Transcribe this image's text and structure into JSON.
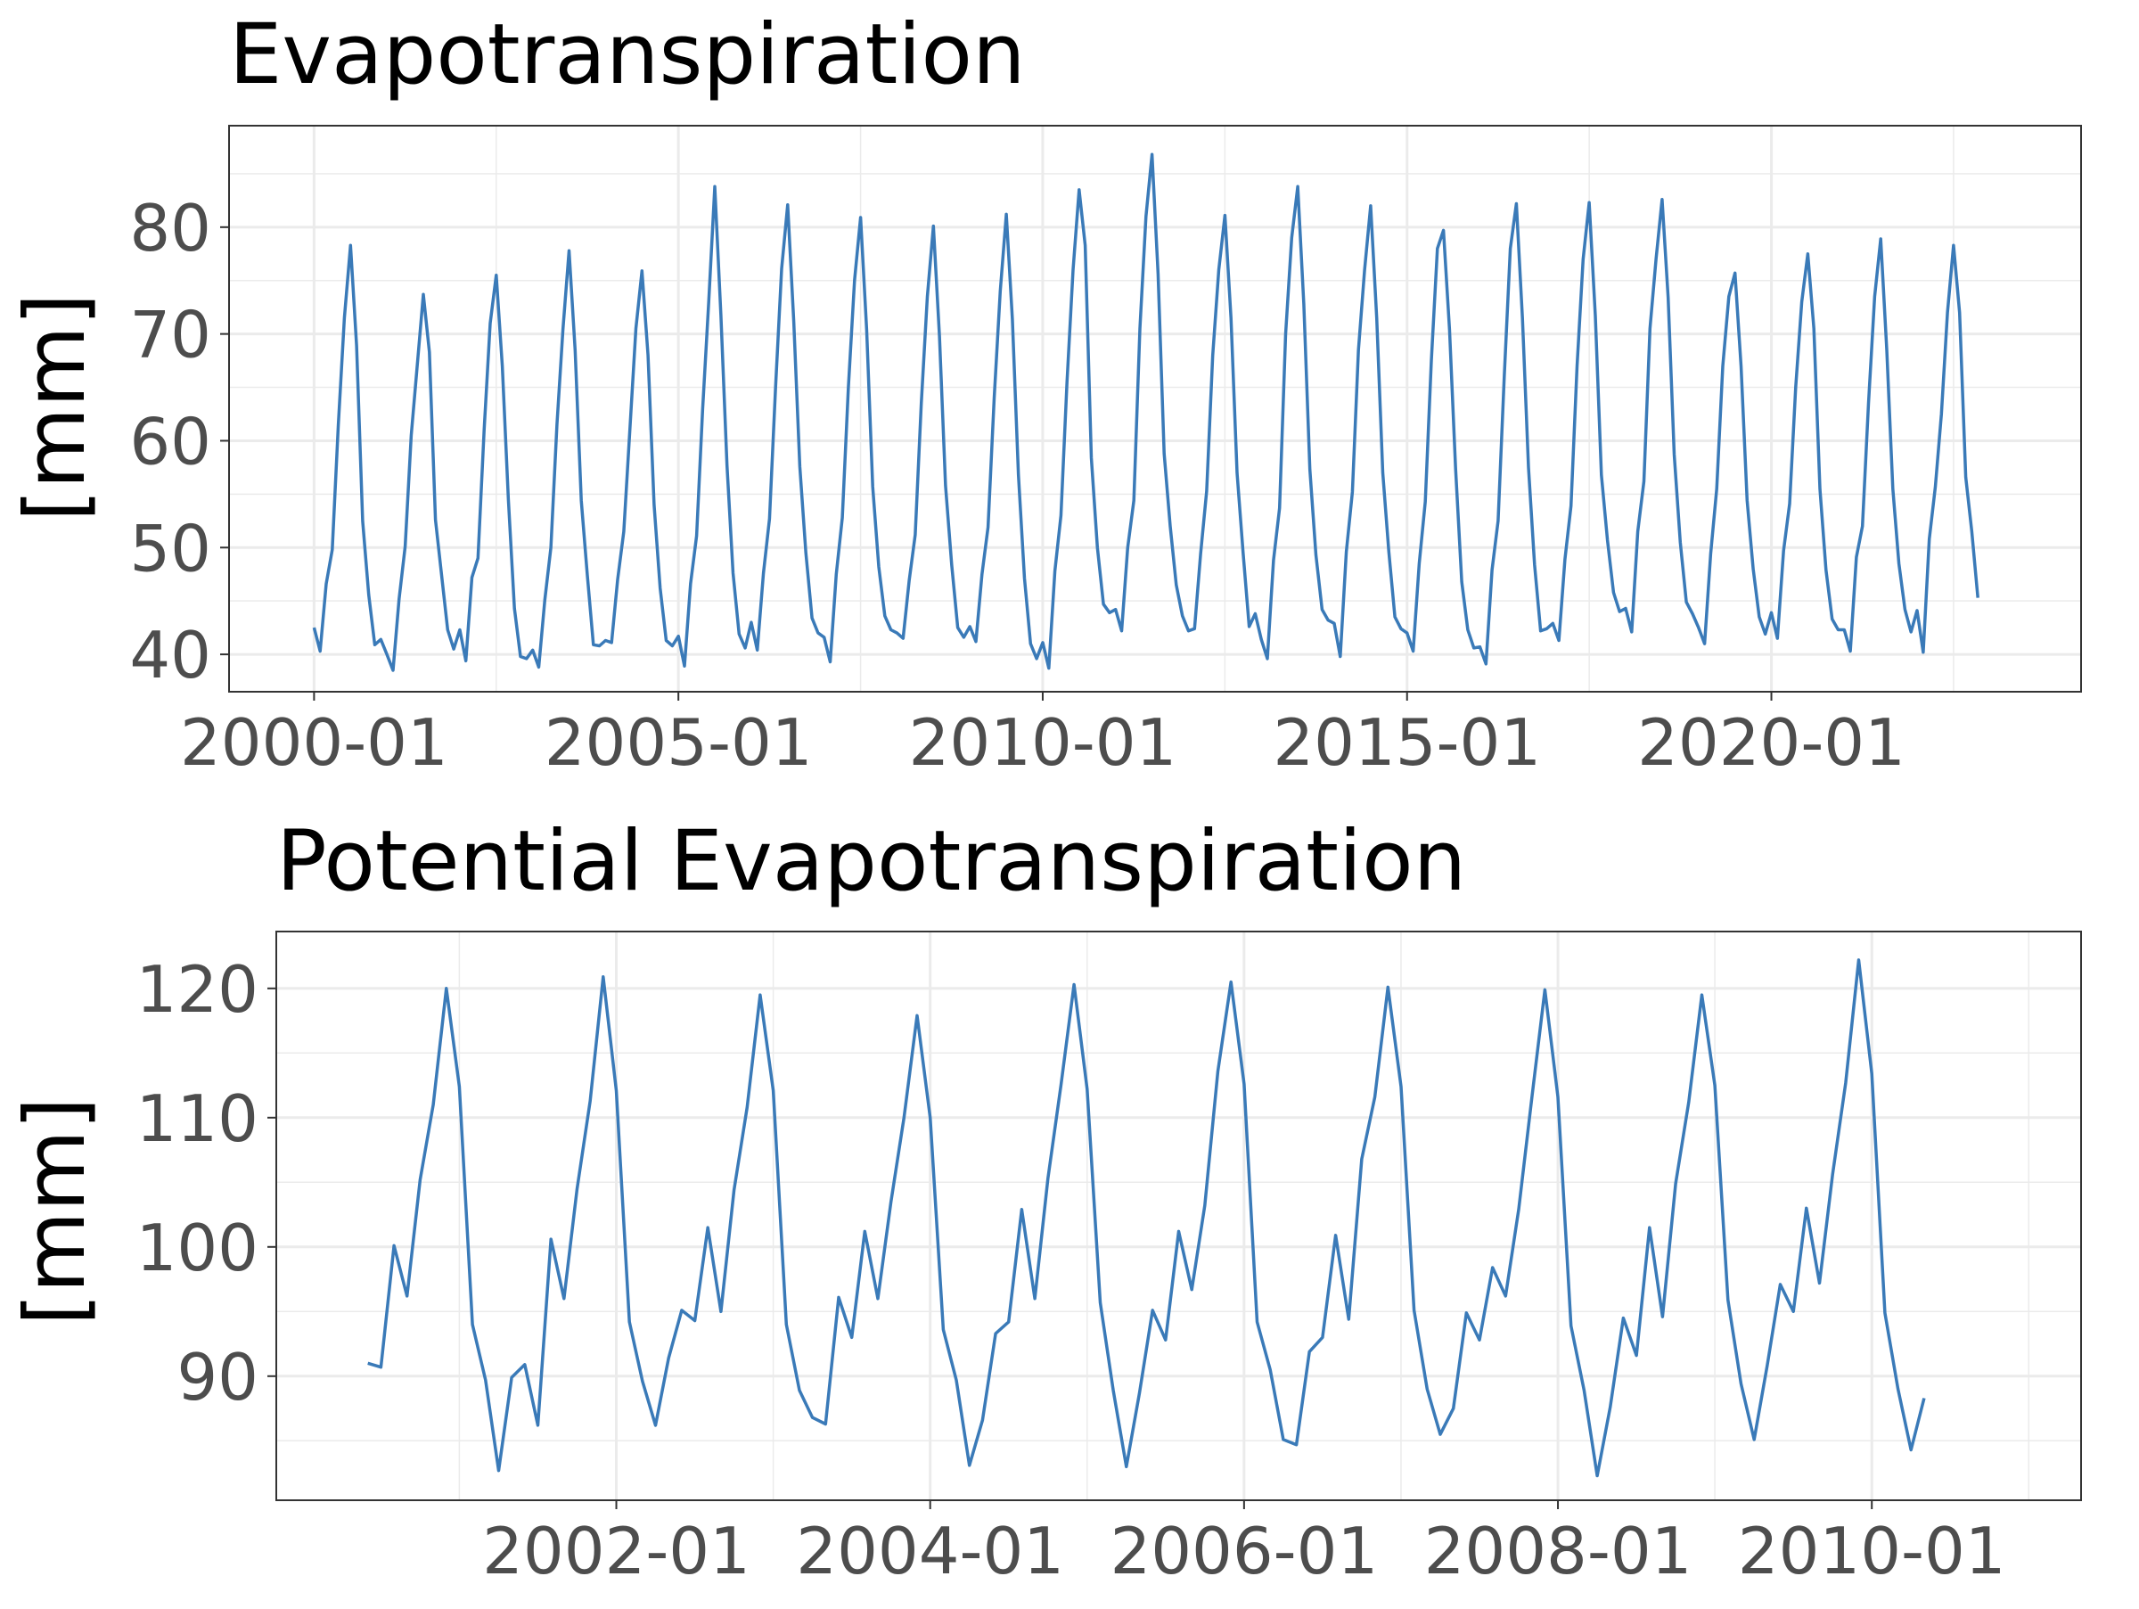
{
  "chart_data": [
    {
      "type": "line",
      "title": "Evapotranspiration",
      "ylabel": "[mm]",
      "xlabel": "",
      "x_ticks": [
        "2000-01",
        "2005-01",
        "2010-01",
        "2015-01",
        "2020-01"
      ],
      "y_ticks": [
        40,
        50,
        60,
        70,
        80
      ],
      "ylim": [
        36.5,
        89.5
      ],
      "xlim": [
        "1998-11",
        "2024-04"
      ],
      "grid": true,
      "start": "2000-01",
      "series": [
        {
          "color": "#3a7ab8",
          "values": [
            42.5,
            40.3,
            46.6,
            49.8,
            61.5,
            71.5,
            78.3,
            68.9,
            52.5,
            45.6,
            40.9,
            41.4,
            40.0,
            38.5,
            45.2,
            50.1,
            60.5,
            67.1,
            73.7,
            68.3,
            52.6,
            47.4,
            42.3,
            40.5,
            42.3,
            39.4,
            47.2,
            49.0,
            61.0,
            71.0,
            75.5,
            67.0,
            54.5,
            44.3,
            39.8,
            39.6,
            40.4,
            38.8,
            45.1,
            50.0,
            61.5,
            70.5,
            77.8,
            68.5,
            54.4,
            47.4,
            40.9,
            40.8,
            41.3,
            41.1,
            47.0,
            51.5,
            61.0,
            70.5,
            75.9,
            68.0,
            54.0,
            46.2,
            41.3,
            40.8,
            41.7,
            38.9,
            46.6,
            51.1,
            63.0,
            73.0,
            83.8,
            71.7,
            57.7,
            47.6,
            41.9,
            40.6,
            43.0,
            40.4,
            47.6,
            52.7,
            65.0,
            76.1,
            82.1,
            71.2,
            57.6,
            49.5,
            43.4,
            42.0,
            41.6,
            39.3,
            47.5,
            52.8,
            65.0,
            75.0,
            80.9,
            70.4,
            55.7,
            48.2,
            43.6,
            42.3,
            42.0,
            41.5,
            46.9,
            51.2,
            63.5,
            73.5,
            80.1,
            69.8,
            55.8,
            48.4,
            42.5,
            41.6,
            42.6,
            41.2,
            47.5,
            51.9,
            64.0,
            74.0,
            81.2,
            71.4,
            56.8,
            47.1,
            41.0,
            39.6,
            41.1,
            38.7,
            47.8,
            53.0,
            65.5,
            76.0,
            83.5,
            78.3,
            58.4,
            50.0,
            44.7,
            43.9,
            44.2,
            42.2,
            50.0,
            54.4,
            70.5,
            81.0,
            86.8,
            75.6,
            58.8,
            52.0,
            46.5,
            43.6,
            42.2,
            42.4,
            49.4,
            55.3,
            68.0,
            76.0,
            81.1,
            71.5,
            57.0,
            49.5,
            42.6,
            43.8,
            41.4,
            39.6,
            48.8,
            53.7,
            70.0,
            79.0,
            83.8,
            72.8,
            57.3,
            49.3,
            44.2,
            43.2,
            42.9,
            39.8,
            49.6,
            55.2,
            68.5,
            76.0,
            82.0,
            71.5,
            57.0,
            49.6,
            43.5,
            42.4,
            42.0,
            40.3,
            48.5,
            54.3,
            67.5,
            78.0,
            79.7,
            70.4,
            57.4,
            46.8,
            42.3,
            40.6,
            40.7,
            39.1,
            47.9,
            52.5,
            66.0,
            78.0,
            82.2,
            71.5,
            57.5,
            48.4,
            42.2,
            42.4,
            42.9,
            41.3,
            48.9,
            53.9,
            67.0,
            77.0,
            82.3,
            71.7,
            56.8,
            50.7,
            45.8,
            44.0,
            44.3,
            42.1,
            51.5,
            56.2,
            70.5,
            77.0,
            82.6,
            73.4,
            58.7,
            50.5,
            44.9,
            43.8,
            42.5,
            41.0,
            49.4,
            55.5,
            67.0,
            73.5,
            75.7,
            67.0,
            54.4,
            48.0,
            43.5,
            41.9,
            43.9,
            41.5,
            49.7,
            54.1,
            65.0,
            73.0,
            77.5,
            70.5,
            55.5,
            47.9,
            43.3,
            42.3,
            42.3,
            40.3,
            49.1,
            52.0,
            63.5,
            73.5,
            78.9,
            68.5,
            55.5,
            48.5,
            44.2,
            42.1,
            44.1,
            40.2,
            50.8,
            55.7,
            62.5,
            72.0,
            78.3,
            72.0,
            56.6,
            51.5,
            45.3
          ]
        }
      ]
    },
    {
      "type": "line",
      "title": "Potential Evapotranspiration",
      "ylabel": "[mm]",
      "xlabel": "",
      "x_ticks": [
        "2002-01",
        "2004-01",
        "2006-01",
        "2008-01",
        "2010-01"
      ],
      "y_ticks": [
        90,
        100,
        110,
        120
      ],
      "ylim": [
        80.4,
        124.4
      ],
      "xlim": [
        "1999-11",
        "2011-05"
      ],
      "grid": true,
      "start": "2000-06",
      "series": [
        {
          "color": "#3a7ab8",
          "values": [
            91.0,
            90.7,
            100.1,
            96.2,
            105.2,
            111.0,
            120.0,
            112.4,
            94.0,
            89.7,
            82.7,
            89.9,
            90.9,
            86.2,
            100.6,
            96.0,
            104.5,
            111.3,
            120.9,
            112.1,
            94.2,
            89.6,
            86.2,
            91.4,
            95.1,
            94.3,
            101.5,
            95.0,
            104.4,
            110.8,
            119.5,
            112.1,
            94.0,
            88.9,
            86.8,
            86.3,
            96.1,
            93.0,
            101.2,
            96.0,
            103.5,
            110.0,
            117.9,
            110.0,
            93.6,
            89.7,
            83.1,
            86.6,
            93.3,
            94.2,
            102.9,
            96.0,
            105.3,
            112.5,
            120.3,
            112.2,
            95.7,
            88.9,
            83.0,
            88.7,
            95.1,
            92.8,
            101.2,
            96.7,
            103.2,
            113.6,
            120.5,
            112.6,
            94.2,
            90.5,
            85.1,
            84.7,
            91.9,
            93.0,
            100.9,
            94.4,
            106.8,
            111.6,
            120.1,
            112.4,
            95.1,
            89.0,
            85.5,
            87.5,
            94.9,
            92.8,
            98.4,
            96.2,
            102.9,
            111.5,
            119.9,
            111.6,
            93.9,
            88.9,
            82.3,
            87.6,
            94.5,
            91.6,
            101.5,
            94.6,
            104.9,
            111.2,
            119.5,
            112.5,
            95.9,
            89.4,
            85.1,
            90.8,
            97.1,
            95.0,
            103.0,
            97.2,
            105.6,
            112.7,
            122.2,
            113.4,
            94.9,
            89.0,
            84.3,
            88.3
          ]
        }
      ]
    }
  ]
}
